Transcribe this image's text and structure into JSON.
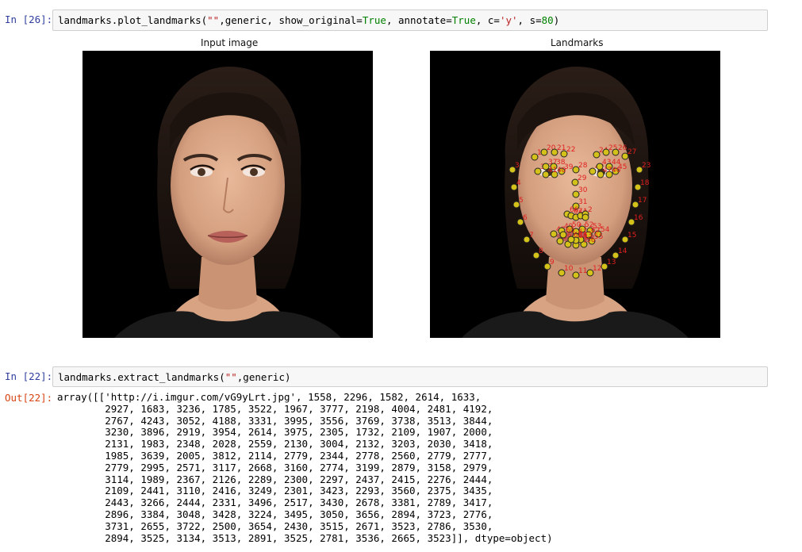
{
  "cell1": {
    "prompt": "In [26]:",
    "code_fn": "landmarks.plot_landmarks(",
    "code_str1": "\"\"",
    "code_mid1": ",generic, show_original=",
    "code_true1": "True",
    "code_mid2": ", annotate=",
    "code_true2": "True",
    "code_mid3": ", c=",
    "code_str2": "'y'",
    "code_mid4": ", s=",
    "code_num": "80",
    "code_end": ")"
  },
  "figure": {
    "left_title": "Input image",
    "right_title": "Landmarks",
    "marker_color": "#d4c21a",
    "label_color": "#e02020",
    "landmark_labels": [
      "19",
      "20",
      "21",
      "22",
      "24",
      "25",
      "26",
      "27",
      "28",
      "29",
      "30",
      "31",
      "36",
      "37",
      "38",
      "39",
      "40",
      "41",
      "42",
      "43",
      "44",
      "45",
      "46",
      "47",
      "48",
      "49",
      "50",
      "51",
      "52",
      "53",
      "54",
      "55",
      "56",
      "57",
      "58",
      "59",
      "60",
      "61",
      "62",
      "63",
      "64",
      "65",
      "66",
      "67",
      "68",
      "1",
      "2",
      "3",
      "4",
      "5",
      "6",
      "7",
      "8",
      "9",
      "10",
      "11",
      "12",
      "13",
      "14",
      "15",
      "16",
      "17",
      "18",
      "23"
    ]
  },
  "cell2": {
    "prompt": "In [22]:",
    "code_fn": "landmarks.extract_landmarks(",
    "code_str": "\"\"",
    "code_end": ",generic)"
  },
  "output": {
    "prompt": "Out[22]:",
    "lines": [
      "array([['http://i.imgur.com/vG9yLrt.jpg', 1558, 2296, 1582, 2614, 1633,",
      "        2927, 1683, 3236, 1785, 3522, 1967, 3777, 2198, 4004, 2481, 4192,",
      "        2767, 4243, 3052, 4188, 3331, 3995, 3556, 3769, 3738, 3513, 3844,",
      "        3230, 3896, 2919, 3954, 2614, 3975, 2305, 1732, 2109, 1907, 2000,",
      "        2131, 1983, 2348, 2028, 2559, 2130, 3004, 2132, 3203, 2030, 3418,",
      "        1985, 3639, 2005, 3812, 2114, 2779, 2344, 2778, 2560, 2779, 2777,",
      "        2779, 2995, 2571, 3117, 2668, 3160, 2774, 3199, 2879, 3158, 2979,",
      "        3114, 1989, 2367, 2126, 2289, 2300, 2297, 2437, 2415, 2276, 2444,",
      "        2109, 2441, 3110, 2416, 3249, 2301, 3423, 2293, 3560, 2375, 3435,",
      "        2443, 3266, 2444, 2331, 3496, 2517, 3430, 2678, 3381, 2789, 3417,",
      "        2896, 3384, 3048, 3428, 3224, 3495, 3050, 3656, 2894, 3723, 2776,",
      "        3731, 2655, 3722, 2500, 3654, 2430, 3515, 2671, 3523, 2786, 3530,",
      "        2894, 3525, 3134, 3513, 2891, 3525, 2781, 3536, 2665, 3523]], dtype=object)"
    ]
  }
}
